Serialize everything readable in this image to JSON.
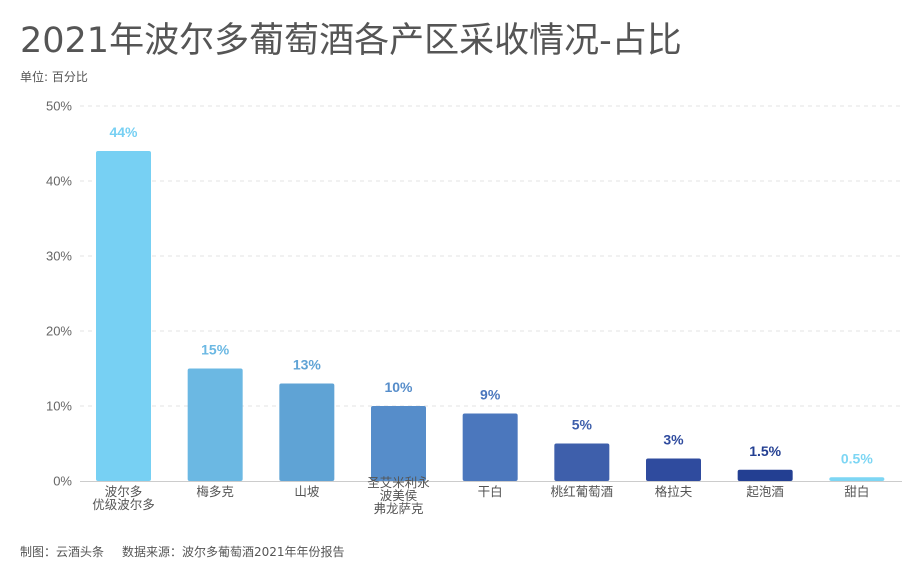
{
  "header": {
    "title": "2021年波尔多葡萄酒各产区采收情况-占比",
    "unit": "单位: 百分比"
  },
  "footer": {
    "made_by": "制图：云酒头条",
    "source": "数据来源：波尔多葡萄酒2021年年份报告"
  },
  "chart_data": {
    "type": "bar",
    "title": "2021年波尔多葡萄酒各产区采收情况-占比",
    "ylabel": "单位: 百分比",
    "xlabel": "",
    "ylim": [
      0,
      50
    ],
    "y_ticks": [
      0,
      10,
      20,
      30,
      40,
      50
    ],
    "y_tick_labels": [
      "0%",
      "10%",
      "20%",
      "30%",
      "40%",
      "50%"
    ],
    "grid": true,
    "categories": [
      [
        "波尔多",
        "优级波尔多"
      ],
      [
        "梅多克"
      ],
      [
        "山坡"
      ],
      [
        "圣艾米利永",
        "波美侯",
        "弗龙萨克"
      ],
      [
        "干白"
      ],
      [
        "桃红葡萄酒"
      ],
      [
        "格拉夫"
      ],
      [
        "起泡酒"
      ],
      [
        "甜白"
      ]
    ],
    "values": [
      44,
      15,
      13,
      10,
      9,
      5,
      3,
      1.5,
      0.5
    ],
    "data_labels": [
      "44%",
      "15%",
      "13%",
      "10%",
      "9%",
      "5%",
      "3%",
      "1.5%",
      "0.5%"
    ],
    "colors": [
      "#77d0f3",
      "#6bb8e3",
      "#5fa3d5",
      "#568dca",
      "#4b77bd",
      "#3e5fab",
      "#2f4b9e",
      "#233f92",
      "#7dd6f4"
    ],
    "label_colors": [
      "#77d0f3",
      "#6bb8e3",
      "#5fa3d5",
      "#568dca",
      "#4b77bd",
      "#3e5fab",
      "#2f4b9e",
      "#233f92",
      "#7dd6f4"
    ]
  }
}
